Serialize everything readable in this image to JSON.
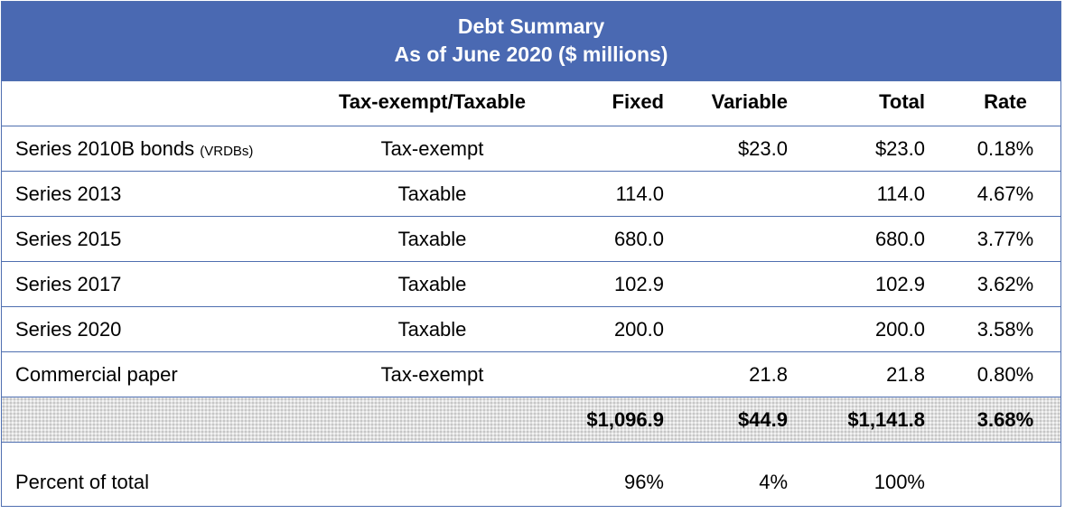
{
  "title": {
    "line1": "Debt Summary",
    "line2": "As of June 2020 ($ millions)"
  },
  "columns": {
    "name": "",
    "tax_status": "Tax-exempt/Taxable",
    "fixed": "Fixed",
    "variable": "Variable",
    "total": "Total",
    "rate": "Rate"
  },
  "rows": [
    {
      "name": "Series 2010B bonds",
      "note": "(VRDBs)",
      "tax_status": "Tax-exempt",
      "fixed": "",
      "variable": "$23.0",
      "total": "$23.0",
      "rate": "0.18%"
    },
    {
      "name": "Series 2013",
      "note": "",
      "tax_status": "Taxable",
      "fixed": "114.0",
      "variable": "",
      "total": "114.0",
      "rate": "4.67%"
    },
    {
      "name": "Series 2015",
      "note": "",
      "tax_status": "Taxable",
      "fixed": "680.0",
      "variable": "",
      "total": "680.0",
      "rate": "3.77%"
    },
    {
      "name": "Series 2017",
      "note": "",
      "tax_status": "Taxable",
      "fixed": "102.9",
      "variable": "",
      "total": "102.9",
      "rate": "3.62%"
    },
    {
      "name": "Series 2020",
      "note": "",
      "tax_status": "Taxable",
      "fixed": "200.0",
      "variable": "",
      "total": "200.0",
      "rate": "3.58%"
    },
    {
      "name": "Commercial paper",
      "note": "",
      "tax_status": "Tax-exempt",
      "fixed": "",
      "variable": "21.8",
      "total": "21.8",
      "rate": "0.80%"
    }
  ],
  "totals": {
    "fixed": "$1,096.9",
    "variable": "$44.9",
    "total": "$1,141.8",
    "rate": "3.68%"
  },
  "percent_row": {
    "label": "Percent of total",
    "fixed": "96%",
    "variable": "4%",
    "total": "100%"
  },
  "colors": {
    "header_bg": "#4a69b2",
    "header_text": "#ffffff",
    "border": "#4f6fb0",
    "total_row_bg": "#e0e0e0"
  }
}
